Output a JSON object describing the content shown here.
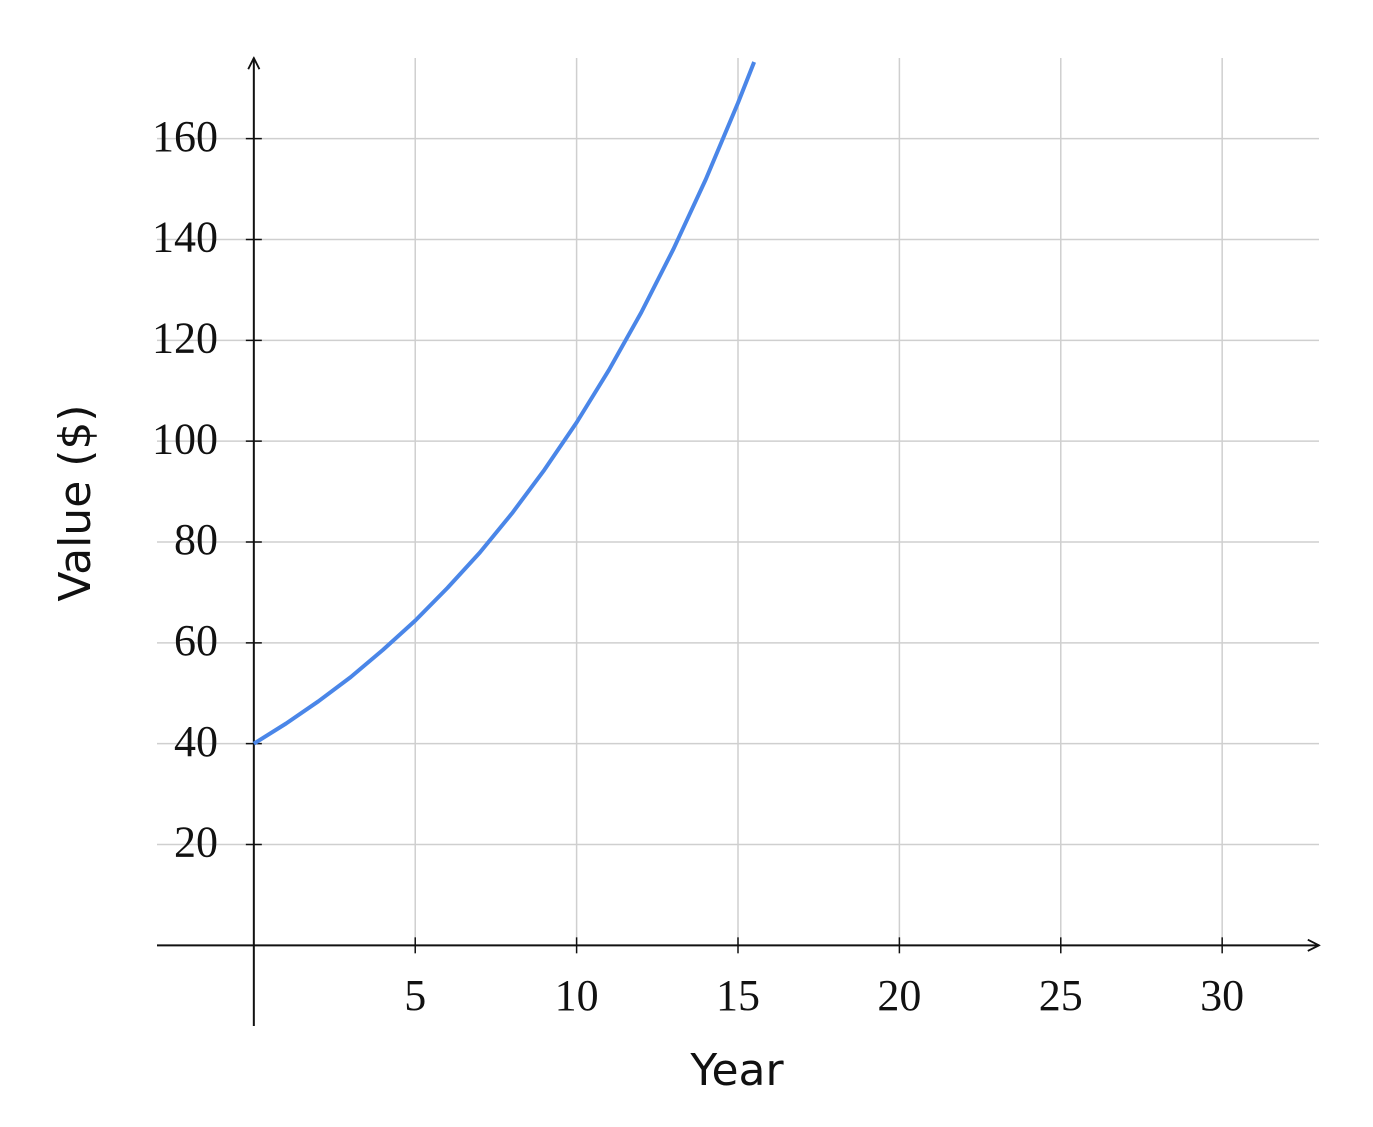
{
  "chart_data": {
    "type": "line",
    "x_label": "Year",
    "y_label": "Value ($)",
    "x": [
      0,
      1,
      2,
      3,
      4,
      5,
      6,
      7,
      8,
      9,
      10,
      11,
      12,
      13,
      14,
      15,
      15.5
    ],
    "values": [
      40,
      44,
      48.4,
      53.2,
      58.6,
      64.4,
      70.9,
      77.9,
      85.7,
      94.3,
      103.7,
      114.1,
      125.5,
      138.1,
      151.9,
      167.1,
      175.2
    ],
    "color": "#4a86e8",
    "xlim": [
      -3,
      33
    ],
    "ylim": [
      -16,
      176
    ],
    "xticks": [
      5,
      10,
      15,
      20,
      25,
      30
    ],
    "yticks": [
      20,
      40,
      60,
      80,
      100,
      120,
      140,
      160
    ],
    "grid": true
  }
}
